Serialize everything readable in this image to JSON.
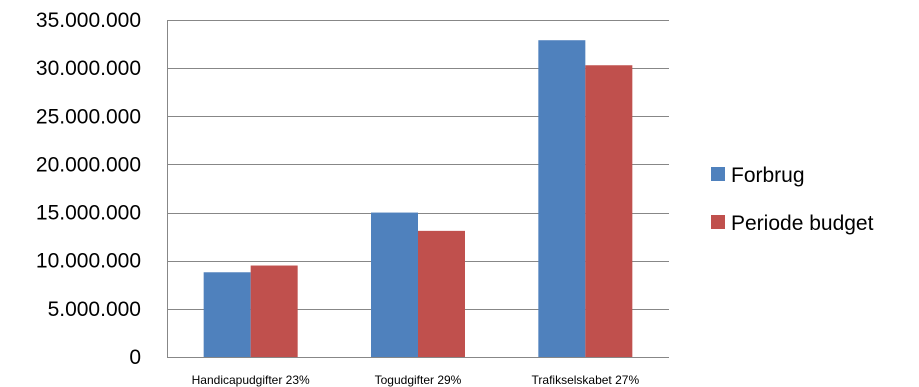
{
  "chart_data": {
    "type": "bar",
    "title": "",
    "xlabel": "",
    "ylabel": "",
    "categories": [
      "Handicapudgifter 23%",
      "Togudgifter 29%",
      "Trafikselskabet 27%"
    ],
    "series": [
      {
        "name": "Forbrug",
        "color": "#4f81bd",
        "values": [
          8800000,
          15000000,
          32900000
        ]
      },
      {
        "name": "Periode budget",
        "color": "#c0504d",
        "values": [
          9500000,
          13100000,
          30300000
        ]
      }
    ],
    "ylim": [
      0,
      35000000
    ],
    "yticks": [
      0,
      5000000,
      10000000,
      15000000,
      20000000,
      25000000,
      30000000,
      35000000
    ],
    "ytick_labels": [
      "0",
      "5.000.000",
      "10.000.000",
      "15.000.000",
      "20.000.000",
      "25.000.000",
      "30.000.000",
      "35.000.000"
    ],
    "grid": true,
    "legend_position": "right"
  }
}
